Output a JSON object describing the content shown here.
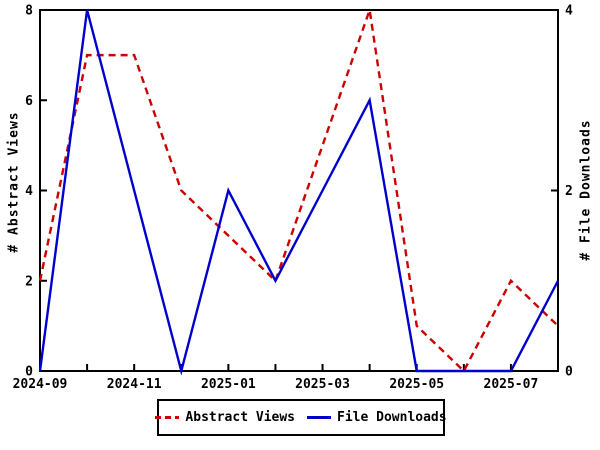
{
  "chart_data": {
    "type": "line",
    "title": "",
    "x": [
      "2024-09",
      "2024-10",
      "2024-11",
      "2024-12",
      "2025-01",
      "2025-02",
      "2025-03",
      "2025-04",
      "2025-05",
      "2025-06",
      "2025-07",
      "2025-08"
    ],
    "x_labeled_ticks": [
      "2024-09",
      "2024-11",
      "2025-01",
      "2025-03",
      "2025-05",
      "2025-07"
    ],
    "series": [
      {
        "name": "Abstract Views",
        "axis": "left",
        "color": "#cc0000",
        "line_style": "dashed",
        "values": [
          2,
          7,
          7,
          4,
          3,
          2,
          5,
          8,
          1,
          0,
          2,
          1
        ]
      },
      {
        "name": "File Downloads",
        "axis": "right",
        "color": "#0000cc",
        "line_style": "solid",
        "values": [
          0,
          4,
          2,
          0,
          2,
          1,
          2,
          3,
          0,
          0,
          0,
          1
        ]
      }
    ],
    "left_axis": {
      "label": "# Abstract Views",
      "min": 0,
      "max": 8,
      "ticks": [
        0,
        2,
        4,
        6,
        8
      ]
    },
    "right_axis": {
      "label": "# File Downloads",
      "min": 0,
      "max": 4,
      "ticks": [
        0,
        2,
        4
      ]
    },
    "legend": {
      "position": "bottom-center",
      "entries": [
        "Abstract Views",
        "File Downloads"
      ]
    },
    "grid": false,
    "frame_color": "#000000",
    "background_color": "#ffffff"
  }
}
